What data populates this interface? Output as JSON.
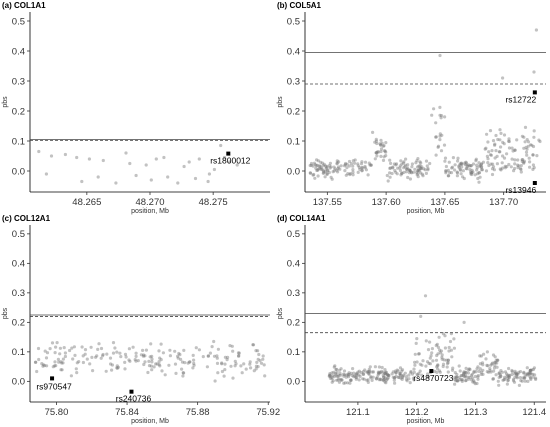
{
  "chart_data": [
    {
      "type": "scatter",
      "title": "(a) COL1A1",
      "xlabel": "position, Mb",
      "ylabel": "pbs",
      "xlim": [
        48.2605,
        48.2795
      ],
      "ylim": [
        -0.07,
        0.53
      ],
      "xticks": [
        48.265,
        48.27,
        48.275
      ],
      "xtick_labels": [
        "48.265",
        "48.270",
        "48.275"
      ],
      "yticks": [
        0.0,
        0.1,
        0.2,
        0.3,
        0.4,
        0.5
      ],
      "ytick_labels": [
        "0.0",
        "0.1",
        "0.2",
        "0.3",
        "0.4",
        "0.5"
      ],
      "solid_threshold": 0.105,
      "dashed_threshold": 0.102,
      "points": [
        [
          48.2612,
          0.065
        ],
        [
          48.2618,
          -0.01
        ],
        [
          48.2622,
          0.05
        ],
        [
          48.2633,
          0.055
        ],
        [
          48.2642,
          0.045
        ],
        [
          48.2646,
          -0.035
        ],
        [
          48.2652,
          0.04
        ],
        [
          48.2659,
          -0.02
        ],
        [
          48.2663,
          0.035
        ],
        [
          48.2673,
          -0.04
        ],
        [
          48.2681,
          0.06
        ],
        [
          48.2684,
          0.025
        ],
        [
          48.2689,
          -0.015
        ],
        [
          48.2697,
          0.02
        ],
        [
          48.2701,
          -0.03
        ],
        [
          48.2705,
          0.04
        ],
        [
          48.2711,
          0.045
        ],
        [
          48.2714,
          -0.02
        ],
        [
          48.2722,
          -0.04
        ],
        [
          48.2727,
          0.015
        ],
        [
          48.2731,
          0.03
        ],
        [
          48.2736,
          -0.025
        ],
        [
          48.2739,
          0.04
        ],
        [
          48.2746,
          -0.035
        ],
        [
          48.2751,
          0.005
        ],
        [
          48.2756,
          0.085
        ],
        [
          48.2759,
          0.045
        ],
        [
          48.2763,
          0.03
        ],
        [
          48.2769,
          0.02
        ],
        [
          48.2747,
          -0.01
        ]
      ],
      "highlighted": [
        {
          "label": "rs1800012",
          "x": 48.2762,
          "y": 0.058
        }
      ]
    },
    {
      "type": "scatter",
      "title": "(b) COL5A1",
      "xlabel": "position, Mb",
      "ylabel": "pbs",
      "xlim": [
        137.531,
        137.736
      ],
      "ylim": [
        -0.07,
        0.53
      ],
      "xticks": [
        137.55,
        137.6,
        137.65,
        137.7
      ],
      "xtick_labels": [
        "137.55",
        "137.60",
        "137.65",
        "137.70"
      ],
      "yticks": [
        0.0,
        0.1,
        0.2,
        0.3,
        0.4,
        0.5
      ],
      "ytick_labels": [
        "0.0",
        "0.1",
        "0.2",
        "0.3",
        "0.4",
        "0.5"
      ],
      "solid_threshold": 0.395,
      "dashed_threshold": 0.29,
      "highlighted": [
        {
          "label": "rs12722",
          "x": 137.7265,
          "y": 0.262
        },
        {
          "label": "rs13946",
          "x": 137.7265,
          "y": -0.04
        }
      ]
    },
    {
      "type": "scatter",
      "title": "(c) COL12A1",
      "xlabel": "position, Mb",
      "ylabel": "pbs",
      "xlim": [
        75.785,
        75.921
      ],
      "ylim": [
        -0.07,
        0.53
      ],
      "xticks": [
        75.8,
        75.84,
        75.88,
        75.92
      ],
      "xtick_labels": [
        "75.80",
        "75.84",
        "75.88",
        "75.92"
      ],
      "yticks": [
        0.0,
        0.1,
        0.2,
        0.3,
        0.4,
        0.5
      ],
      "ytick_labels": [
        "0.0",
        "0.1",
        "0.2",
        "0.3",
        "0.4",
        "0.5"
      ],
      "solid_threshold": 0.225,
      "dashed_threshold": 0.22,
      "highlighted": [
        {
          "label": "rs970547",
          "x": 75.7975,
          "y": 0.01
        },
        {
          "label": "rs240736",
          "x": 75.8425,
          "y": -0.035
        }
      ]
    },
    {
      "type": "scatter",
      "title": "(d) COL14A1",
      "xlabel": "position, Mb",
      "ylabel": "pbs",
      "xlim": [
        121.01,
        121.42
      ],
      "ylim": [
        -0.07,
        0.53
      ],
      "xticks": [
        121.1,
        121.2,
        121.3,
        121.4
      ],
      "xtick_labels": [
        "121.1",
        "121.2",
        "121.3",
        "121.4"
      ],
      "yticks": [
        0.0,
        0.1,
        0.2,
        0.3,
        0.4,
        0.5
      ],
      "ytick_labels": [
        "0.0",
        "0.1",
        "0.2",
        "0.3",
        "0.4",
        "0.5"
      ],
      "solid_threshold": 0.23,
      "dashed_threshold": 0.165,
      "highlighted": [
        {
          "label": "rs4870723",
          "x": 121.225,
          "y": 0.035
        }
      ]
    }
  ]
}
